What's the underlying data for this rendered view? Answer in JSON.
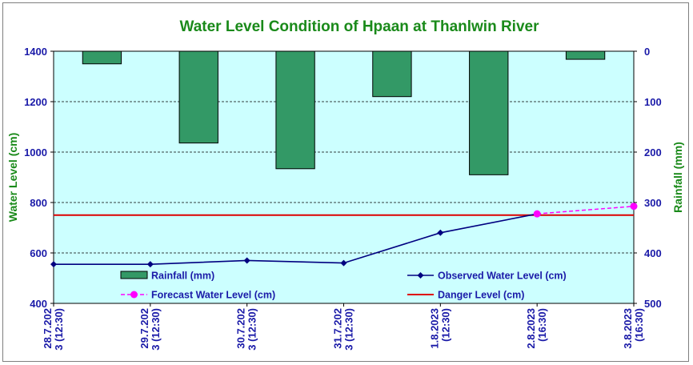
{
  "chart_data": {
    "type": "bar+line",
    "title": "Water Level Condition of Hpaan at Thanlwin River",
    "ylabel_left": "Water Level (cm)",
    "ylabel_right": "Rainfall (mm)",
    "ylim_left": [
      400,
      1400
    ],
    "yticks_left": [
      "400",
      "600",
      "800",
      "1000",
      "1200",
      "1400"
    ],
    "ylim_right": [
      0,
      500
    ],
    "right_axis_inverted": true,
    "yticks_right": [
      "0",
      "100",
      "200",
      "300",
      "400",
      "500"
    ],
    "grid": "horizontal dashed",
    "x_labels": [
      [
        "28.7.202",
        "3 (12:30)"
      ],
      [
        "29.7.202",
        "3 (12:30)"
      ],
      [
        "30.7.202",
        "3 (12:30)"
      ],
      [
        "31.7.202",
        "3 (12:30)"
      ],
      [
        "1.8.2023",
        "(12:30)"
      ],
      [
        "2.8.2023",
        "(16:30)"
      ],
      [
        "3.8.2023",
        "(16:30)"
      ]
    ],
    "rainfall": {
      "name": "Rainfall (mm)",
      "x": [
        0.5,
        1.5,
        2.5,
        3.5,
        4.5,
        5.5
      ],
      "values": [
        25,
        182,
        233,
        90,
        245,
        16
      ]
    },
    "observed": {
      "name": "Observed Water Level (cm)",
      "x": [
        0,
        1,
        2,
        3,
        4,
        5
      ],
      "values": [
        555,
        555,
        570,
        560,
        680,
        755
      ]
    },
    "forecast": {
      "name": "Forecast Water Level (cm)",
      "x": [
        5,
        6
      ],
      "values": [
        755,
        785
      ]
    },
    "danger": {
      "name": "Danger Level (cm)",
      "value": 750
    },
    "colors": {
      "plot_bg": "#ccffff",
      "rainfall": "#339966",
      "observed": "#000080",
      "forecast": "#ff00ff",
      "danger": "#dd0000",
      "title": "#1a8a1a",
      "ticks": "#1a1aa8"
    }
  }
}
